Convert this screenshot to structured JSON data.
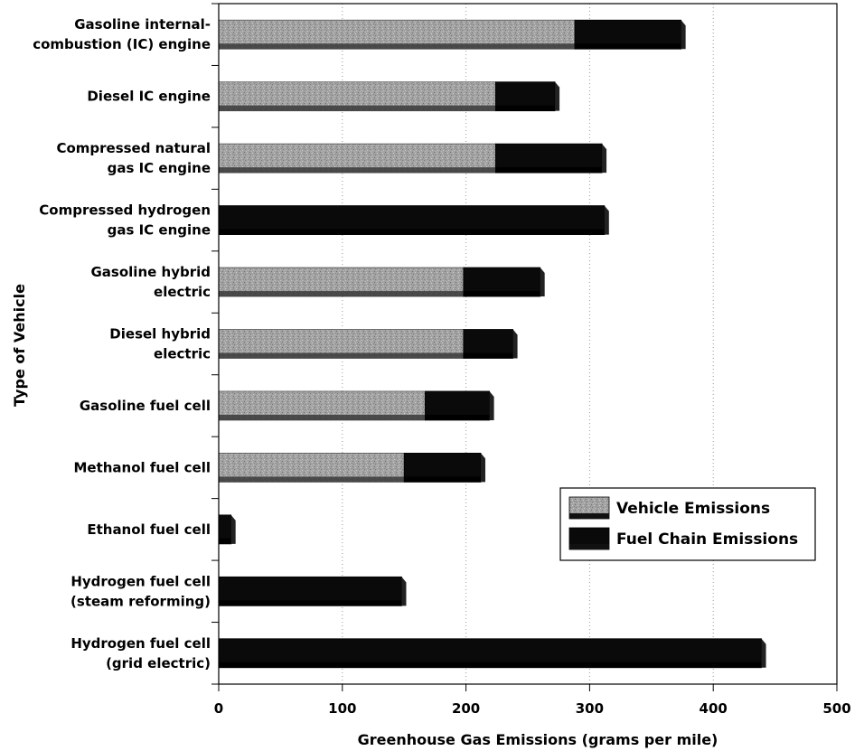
{
  "chart_data": {
    "type": "bar",
    "orientation": "horizontal",
    "stacked": true,
    "xlabel": "Greenhouse Gas Emissions (grams per mile)",
    "ylabel": "Type of Vehicle",
    "xlim": [
      0,
      500
    ],
    "xticks": [
      0,
      100,
      200,
      300,
      400,
      500
    ],
    "grid": "vertical",
    "legend_position": "bottom-right",
    "categories": [
      [
        "Gasoline internal-",
        "combustion (IC) engine"
      ],
      [
        "Diesel IC engine"
      ],
      [
        "Compressed natural",
        "gas IC engine"
      ],
      [
        "Compressed hydrogen",
        "gas IC engine"
      ],
      [
        "Gasoline hybrid",
        "electric"
      ],
      [
        "Diesel hybrid",
        "electric"
      ],
      [
        "Gasoline fuel cell"
      ],
      [
        "Methanol fuel cell"
      ],
      [
        "Ethanol fuel cell"
      ],
      [
        "Hydrogen fuel cell",
        "(steam reforming)"
      ],
      [
        "Hydrogen fuel cell",
        "(grid electric)"
      ]
    ],
    "series": [
      {
        "name": "Vehicle Emissions",
        "color": "#9a9a9a",
        "values": [
          288,
          224,
          224,
          0,
          198,
          198,
          167,
          150,
          0,
          0,
          0
        ]
      },
      {
        "name": "Fuel Chain Emissions",
        "color": "#0a0a0a",
        "values": [
          86,
          48,
          86,
          312,
          62,
          40,
          52,
          62,
          10,
          148,
          439
        ]
      }
    ]
  }
}
